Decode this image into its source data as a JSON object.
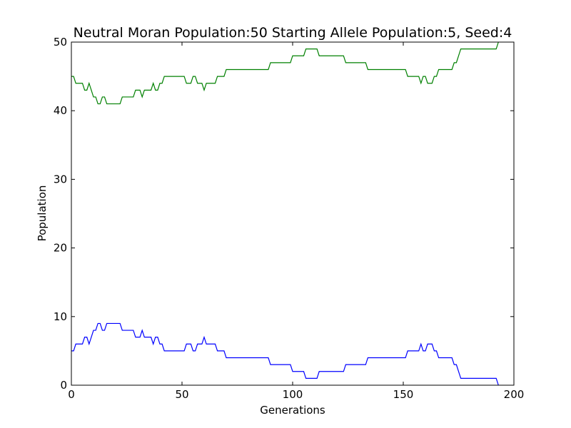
{
  "chart_data": {
    "type": "line",
    "title": "Neutral Moran Population:50 Starting Allele Population:5, Seed:4",
    "xlabel": "Generations",
    "ylabel": "Population",
    "xlim": [
      0,
      200
    ],
    "ylim": [
      0,
      50
    ],
    "xticks": [
      0,
      50,
      100,
      150,
      200
    ],
    "yticks": [
      0,
      10,
      20,
      30,
      40,
      50
    ],
    "grid": false,
    "legend": "none",
    "series": [
      {
        "color": "#0000ff",
        "x": [
          0,
          1,
          2,
          3,
          4,
          5,
          6,
          7,
          8,
          9,
          10,
          11,
          12,
          13,
          14,
          15,
          16,
          17,
          18,
          19,
          20,
          21,
          22,
          23,
          24,
          25,
          26,
          27,
          28,
          29,
          30,
          31,
          32,
          33,
          34,
          35,
          36,
          37,
          38,
          39,
          40,
          41,
          42,
          43,
          44,
          45,
          46,
          47,
          48,
          49,
          50,
          51,
          52,
          53,
          54,
          55,
          56,
          57,
          58,
          59,
          60,
          61,
          62,
          63,
          64,
          65,
          66,
          67,
          68,
          69,
          70,
          71,
          72,
          73,
          74,
          75,
          76,
          77,
          78,
          79,
          80,
          81,
          82,
          83,
          84,
          85,
          86,
          87,
          88,
          89,
          90,
          91,
          92,
          93,
          94,
          95,
          96,
          97,
          98,
          99,
          100,
          101,
          102,
          103,
          104,
          105,
          106,
          107,
          108,
          109,
          110,
          111,
          112,
          113,
          114,
          115,
          116,
          117,
          118,
          119,
          120,
          121,
          122,
          123,
          124,
          125,
          126,
          127,
          128,
          129,
          130,
          131,
          132,
          133,
          134,
          135,
          136,
          137,
          138,
          139,
          140,
          141,
          142,
          143,
          144,
          145,
          146,
          147,
          148,
          149,
          150,
          151,
          152,
          153,
          154,
          155,
          156,
          157,
          158,
          159,
          160,
          161,
          162,
          163,
          164,
          165,
          166,
          167,
          168,
          169,
          170,
          171,
          172,
          173,
          174,
          175,
          176,
          177,
          178,
          179,
          180,
          181,
          182,
          183,
          184,
          185,
          186,
          187,
          188,
          189,
          190,
          191,
          192,
          193
        ],
        "y": [
          5,
          5,
          6,
          6,
          6,
          6,
          7,
          7,
          6,
          7,
          8,
          8,
          9,
          9,
          8,
          8,
          9,
          9,
          9,
          9,
          9,
          9,
          9,
          8,
          8,
          8,
          8,
          8,
          8,
          7,
          7,
          7,
          8,
          7,
          7,
          7,
          7,
          6,
          7,
          7,
          6,
          6,
          5,
          5,
          5,
          5,
          5,
          5,
          5,
          5,
          5,
          5,
          6,
          6,
          6,
          5,
          5,
          6,
          6,
          6,
          7,
          6,
          6,
          6,
          6,
          6,
          5,
          5,
          5,
          5,
          4,
          4,
          4,
          4,
          4,
          4,
          4,
          4,
          4,
          4,
          4,
          4,
          4,
          4,
          4,
          4,
          4,
          4,
          4,
          4,
          3,
          3,
          3,
          3,
          3,
          3,
          3,
          3,
          3,
          3,
          2,
          2,
          2,
          2,
          2,
          2,
          1,
          1,
          1,
          1,
          1,
          1,
          2,
          2,
          2,
          2,
          2,
          2,
          2,
          2,
          2,
          2,
          2,
          2,
          3,
          3,
          3,
          3,
          3,
          3,
          3,
          3,
          3,
          3,
          4,
          4,
          4,
          4,
          4,
          4,
          4,
          4,
          4,
          4,
          4,
          4,
          4,
          4,
          4,
          4,
          4,
          4,
          5,
          5,
          5,
          5,
          5,
          5,
          6,
          5,
          5,
          6,
          6,
          6,
          5,
          5,
          4,
          4,
          4,
          4,
          4,
          4,
          4,
          3,
          3,
          2,
          1,
          1,
          1,
          1,
          1,
          1,
          1,
          1,
          1,
          1,
          1,
          1,
          1,
          1,
          1,
          1,
          1,
          0
        ]
      },
      {
        "color": "#008000",
        "x": [
          0,
          1,
          2,
          3,
          4,
          5,
          6,
          7,
          8,
          9,
          10,
          11,
          12,
          13,
          14,
          15,
          16,
          17,
          18,
          19,
          20,
          21,
          22,
          23,
          24,
          25,
          26,
          27,
          28,
          29,
          30,
          31,
          32,
          33,
          34,
          35,
          36,
          37,
          38,
          39,
          40,
          41,
          42,
          43,
          44,
          45,
          46,
          47,
          48,
          49,
          50,
          51,
          52,
          53,
          54,
          55,
          56,
          57,
          58,
          59,
          60,
          61,
          62,
          63,
          64,
          65,
          66,
          67,
          68,
          69,
          70,
          71,
          72,
          73,
          74,
          75,
          76,
          77,
          78,
          79,
          80,
          81,
          82,
          83,
          84,
          85,
          86,
          87,
          88,
          89,
          90,
          91,
          92,
          93,
          94,
          95,
          96,
          97,
          98,
          99,
          100,
          101,
          102,
          103,
          104,
          105,
          106,
          107,
          108,
          109,
          110,
          111,
          112,
          113,
          114,
          115,
          116,
          117,
          118,
          119,
          120,
          121,
          122,
          123,
          124,
          125,
          126,
          127,
          128,
          129,
          130,
          131,
          132,
          133,
          134,
          135,
          136,
          137,
          138,
          139,
          140,
          141,
          142,
          143,
          144,
          145,
          146,
          147,
          148,
          149,
          150,
          151,
          152,
          153,
          154,
          155,
          156,
          157,
          158,
          159,
          160,
          161,
          162,
          163,
          164,
          165,
          166,
          167,
          168,
          169,
          170,
          171,
          172,
          173,
          174,
          175,
          176,
          177,
          178,
          179,
          180,
          181,
          182,
          183,
          184,
          185,
          186,
          187,
          188,
          189,
          190,
          191,
          192,
          193
        ],
        "y": [
          45,
          45,
          44,
          44,
          44,
          44,
          43,
          43,
          44,
          43,
          42,
          42,
          41,
          41,
          42,
          42,
          41,
          41,
          41,
          41,
          41,
          41,
          41,
          42,
          42,
          42,
          42,
          42,
          42,
          43,
          43,
          43,
          42,
          43,
          43,
          43,
          43,
          44,
          43,
          43,
          44,
          44,
          45,
          45,
          45,
          45,
          45,
          45,
          45,
          45,
          45,
          45,
          44,
          44,
          44,
          45,
          45,
          44,
          44,
          44,
          43,
          44,
          44,
          44,
          44,
          44,
          45,
          45,
          45,
          45,
          46,
          46,
          46,
          46,
          46,
          46,
          46,
          46,
          46,
          46,
          46,
          46,
          46,
          46,
          46,
          46,
          46,
          46,
          46,
          46,
          47,
          47,
          47,
          47,
          47,
          47,
          47,
          47,
          47,
          47,
          48,
          48,
          48,
          48,
          48,
          48,
          49,
          49,
          49,
          49,
          49,
          49,
          48,
          48,
          48,
          48,
          48,
          48,
          48,
          48,
          48,
          48,
          48,
          48,
          47,
          47,
          47,
          47,
          47,
          47,
          47,
          47,
          47,
          47,
          46,
          46,
          46,
          46,
          46,
          46,
          46,
          46,
          46,
          46,
          46,
          46,
          46,
          46,
          46,
          46,
          46,
          46,
          45,
          45,
          45,
          45,
          45,
          45,
          44,
          45,
          45,
          44,
          44,
          44,
          45,
          45,
          46,
          46,
          46,
          46,
          46,
          46,
          46,
          47,
          47,
          48,
          49,
          49,
          49,
          49,
          49,
          49,
          49,
          49,
          49,
          49,
          49,
          49,
          49,
          49,
          49,
          49,
          49,
          50
        ]
      }
    ]
  }
}
